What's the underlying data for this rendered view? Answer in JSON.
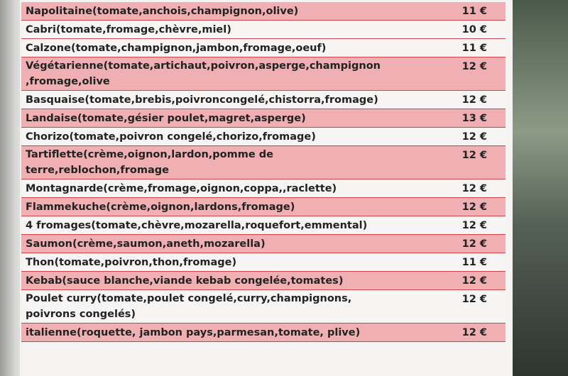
{
  "menu": {
    "items": [
      {
        "lines": [
          "Napolitaine(tomate,anchois,champignon,olive)"
        ],
        "price": "11 €"
      },
      {
        "lines": [
          "Cabri(tomate,fromage,chèvre,miel)"
        ],
        "price": "10 €"
      },
      {
        "lines": [
          "Calzone(tomate,champignon,jambon,fromage,oeuf)"
        ],
        "price": "11 €"
      },
      {
        "lines": [
          "Végétarienne(tomate,artichaut,poivron,asperge,champignon",
          ",fromage,olive"
        ],
        "price": "12 €"
      },
      {
        "lines": [
          "Basquaise(tomate,brebis,poivroncongelé,chistorra,fromage)"
        ],
        "price": "12 €"
      },
      {
        "lines": [
          "Landaise(tomate,gésier poulet,magret,asperge)"
        ],
        "price": "13 €"
      },
      {
        "lines": [
          "Chorizo(tomate,poivron congelé,chorizo,fromage)"
        ],
        "price": "12 €"
      },
      {
        "lines": [
          "Tartiflette(crème,oignon,lardon,pomme de",
          "terre,reblochon,fromage"
        ],
        "price": "12 €"
      },
      {
        "lines": [
          "Montagnarde(crème,fromage,oignon,coppa,,raclette)"
        ],
        "price": "12 €"
      },
      {
        "lines": [
          "Flammekuche(crème,oignon,lardons,fromage)"
        ],
        "price": "12 €"
      },
      {
        "lines": [
          "4 fromages(tomate,chèvre,mozarella,roquefort,emmental)"
        ],
        "price": "12 €"
      },
      {
        "lines": [
          "Saumon(crème,saumon,aneth,mozarella)"
        ],
        "price": "12 €"
      },
      {
        "lines": [
          "Thon(tomate,poivron,thon,fromage)"
        ],
        "price": "11 €"
      },
      {
        "lines": [
          "Kebab(sauce blanche,viande kebab congelée,tomates)"
        ],
        "price": "12 €"
      },
      {
        "lines": [
          "Poulet curry(tomate,poulet congelé,curry,champignons,",
          "poivrons congelés)"
        ],
        "price": "12 €"
      },
      {
        "lines": [
          "italienne(roquette, jambon pays,parmesan,tomate, plive)"
        ],
        "price": "12 €"
      }
    ]
  }
}
